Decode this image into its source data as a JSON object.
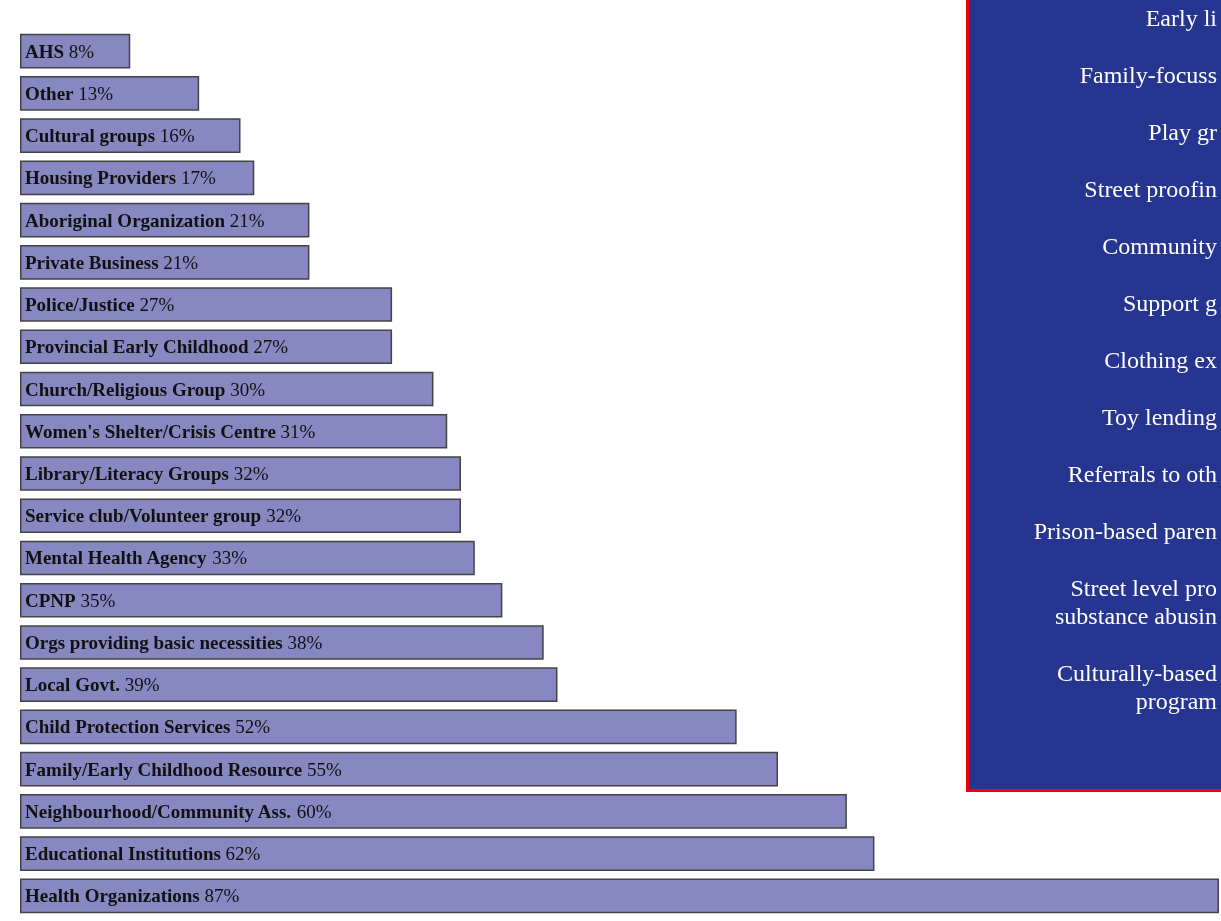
{
  "chart_data": [
    {
      "type": "bar",
      "orientation": "horizontal",
      "categories": [
        "AHS",
        "Other",
        "Cultural groups",
        "Housing Providers",
        "Aboriginal Organization",
        "Private Business",
        "Police/Justice",
        "Provincial Early Childhood",
        "Church/Religious Group",
        "Women's Shelter/Crisis Centre",
        "Library/Literacy Groups",
        "Service club/Volunteer group",
        "Mental Health Agency",
        "CPNP",
        "Orgs providing basic necessities",
        "Local Govt.",
        "Child Protection Services",
        "Family/Early Childhood Resource",
        "Neighbourhood/Community Ass.",
        "Educational Institutions",
        "Health Organizations"
      ],
      "values": [
        8,
        13,
        16,
        17,
        21,
        21,
        27,
        27,
        30,
        31,
        32,
        32,
        33,
        35,
        38,
        39,
        52,
        55,
        60,
        62,
        87
      ],
      "value_labels": [
        "8%",
        "13%",
        "16%",
        "17%",
        "21%",
        "21%",
        "27%",
        "27%",
        "30%",
        "31%",
        "32%",
        "32%",
        "33%",
        "35%",
        "38%",
        "39%",
        "52%",
        "55%",
        "60%",
        "62%",
        "87%"
      ],
      "color": "#8787c2"
    },
    {
      "type": "other",
      "annotations": [
        "Early li",
        "Family-focuss",
        "Play gr",
        "Street proofin",
        "Community",
        "Support g",
        "Clothing ex",
        "Toy lending",
        "Referrals to oth",
        "Prison-based paren",
        "Street level pro substance abusin",
        "Culturally-based program"
      ]
    }
  ]
}
